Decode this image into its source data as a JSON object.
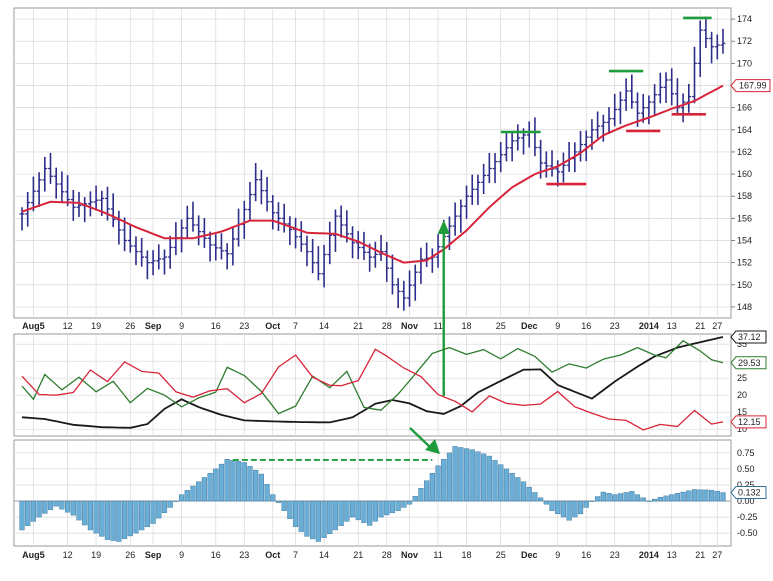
{
  "chart_data": [
    {
      "type": "ohlc",
      "panel": "price",
      "ylim": [
        147,
        175
      ],
      "yticks": [
        148,
        150,
        152,
        154,
        156,
        158,
        160,
        162,
        164,
        166,
        168,
        170,
        172,
        174
      ],
      "x_date_labels": [
        "Aug5",
        "12",
        "19",
        "26",
        "Sep",
        "9",
        "16",
        "23",
        "Oct",
        "7",
        "14",
        "21",
        "28",
        "Nov",
        "11",
        "18",
        "25",
        "Dec",
        "9",
        "16",
        "23",
        "2014",
        "13",
        "21",
        "27"
      ],
      "bold_labels": [
        "Aug5",
        "Sep",
        "Oct",
        "Nov",
        "Dec",
        "2014"
      ],
      "bar_count": 124,
      "close_anchors": [
        [
          0,
          156.4
        ],
        [
          4,
          160.5
        ],
        [
          9,
          157.0
        ],
        [
          14,
          157.8
        ],
        [
          18,
          154.0
        ],
        [
          22,
          152.0
        ],
        [
          25,
          152.5
        ],
        [
          29,
          156.0
        ],
        [
          33,
          153.6
        ],
        [
          36,
          152.8
        ],
        [
          39,
          156.8
        ],
        [
          41,
          159.5
        ],
        [
          44,
          156.5
        ],
        [
          47,
          155.0
        ],
        [
          50,
          153.0
        ],
        [
          52,
          151.0
        ],
        [
          55,
          156.2
        ],
        [
          58,
          153.8
        ],
        [
          61,
          152.5
        ],
        [
          63,
          153.0
        ],
        [
          65,
          150.0
        ],
        [
          67,
          148.8
        ],
        [
          70,
          152.3
        ],
        [
          72,
          152.5
        ],
        [
          75,
          155.3
        ],
        [
          78,
          158.0
        ],
        [
          82,
          160.5
        ],
        [
          86,
          163.0
        ],
        [
          89,
          163.8
        ],
        [
          91,
          161.0
        ],
        [
          94,
          160.2
        ],
        [
          97,
          162.0
        ],
        [
          100,
          164.0
        ],
        [
          103,
          165.0
        ],
        [
          106,
          167.5
        ],
        [
          108,
          165.5
        ],
        [
          110,
          166.5
        ],
        [
          113,
          168.5
        ],
        [
          115,
          166.0
        ],
        [
          117,
          167.0
        ],
        [
          119,
          173.0
        ],
        [
          121,
          171.5
        ],
        [
          123,
          171.8
        ]
      ],
      "moving_average": {
        "last_value": 167.99,
        "color": "#d8243a",
        "anchors": [
          [
            0,
            156.6
          ],
          [
            5,
            157.5
          ],
          [
            10,
            157.4
          ],
          [
            15,
            156.4
          ],
          [
            20,
            155.2
          ],
          [
            25,
            154.2
          ],
          [
            30,
            154.2
          ],
          [
            35,
            154.8
          ],
          [
            40,
            155.8
          ],
          [
            44,
            155.8
          ],
          [
            50,
            154.7
          ],
          [
            55,
            154.6
          ],
          [
            59,
            153.9
          ],
          [
            63,
            152.9
          ],
          [
            67,
            152.0
          ],
          [
            71,
            152.2
          ],
          [
            74,
            153.2
          ],
          [
            78,
            154.9
          ],
          [
            82,
            157.0
          ],
          [
            86,
            158.8
          ],
          [
            90,
            160.0
          ],
          [
            94,
            160.7
          ],
          [
            98,
            161.9
          ],
          [
            102,
            163.5
          ],
          [
            106,
            164.4
          ],
          [
            110,
            165.1
          ],
          [
            114,
            165.9
          ],
          [
            118,
            166.6
          ],
          [
            123,
            167.99
          ]
        ]
      },
      "bar_color": "#2d2d8a",
      "last_price_label": "167.99",
      "annotations": {
        "green_highs": [
          [
            84,
            91,
            163.8
          ],
          [
            103,
            109,
            169.3
          ],
          [
            116,
            121,
            174.1
          ]
        ],
        "red_lows": [
          [
            92,
            99,
            159.1
          ],
          [
            106,
            112,
            163.9
          ],
          [
            114,
            120,
            165.4
          ]
        ],
        "arrow_up_bar": 74
      }
    },
    {
      "type": "line",
      "panel": "indicator",
      "ylim": [
        8,
        38
      ],
      "yticks": [
        10,
        15,
        20,
        25,
        30,
        35
      ],
      "series": [
        {
          "name": "",
          "color": "#1a1a1a",
          "last_label": "37.12",
          "anchors": [
            [
              0,
              13.5
            ],
            [
              4,
              13.0
            ],
            [
              9,
              11.3
            ],
            [
              14,
              10.6
            ],
            [
              19,
              10.4
            ],
            [
              22,
              11.5
            ],
            [
              25,
              16.0
            ],
            [
              28,
              18.8
            ],
            [
              31,
              16.5
            ],
            [
              35,
              14.2
            ],
            [
              39,
              12.6
            ],
            [
              44,
              12.3
            ],
            [
              49,
              12.1
            ],
            [
              54,
              12.0
            ],
            [
              58,
              13.5
            ],
            [
              62,
              17.5
            ],
            [
              65,
              18.6
            ],
            [
              68,
              17.6
            ],
            [
              71,
              15.3
            ],
            [
              74,
              14.5
            ],
            [
              77,
              16.8
            ],
            [
              80,
              20.8
            ],
            [
              84,
              24.2
            ],
            [
              88,
              27.5
            ],
            [
              91,
              27.6
            ],
            [
              94,
              23.0
            ],
            [
              97,
              21.0
            ],
            [
              100,
              19.0
            ],
            [
              104,
              24.0
            ],
            [
              108,
              28.4
            ],
            [
              111,
              31.4
            ],
            [
              115,
              34.0
            ],
            [
              118,
              35.2
            ],
            [
              123,
              37.12
            ]
          ]
        },
        {
          "name": "",
          "color": "#2e7d2e",
          "last_label": "29.53",
          "anchors": [
            [
              0,
              22.7
            ],
            [
              2,
              18.8
            ],
            [
              4,
              26.1
            ],
            [
              7,
              21.6
            ],
            [
              10,
              25.3
            ],
            [
              13,
              21.0
            ],
            [
              16,
              24.1
            ],
            [
              19,
              17.8
            ],
            [
              22,
              22.0
            ],
            [
              25,
              20.0
            ],
            [
              28,
              16.6
            ],
            [
              31,
              19.2
            ],
            [
              34,
              20.9
            ],
            [
              36,
              28.2
            ],
            [
              39,
              25.8
            ],
            [
              42,
              21.1
            ],
            [
              45,
              14.6
            ],
            [
              48,
              16.8
            ],
            [
              51,
              25.6
            ],
            [
              54,
              22.2
            ],
            [
              57,
              27.0
            ],
            [
              60,
              16.4
            ],
            [
              63,
              15.6
            ],
            [
              66,
              20.3
            ],
            [
              69,
              26.2
            ],
            [
              72,
              32.3
            ],
            [
              75,
              34.0
            ],
            [
              78,
              32.0
            ],
            [
              81,
              33.4
            ],
            [
              84,
              30.7
            ],
            [
              87,
              33.7
            ],
            [
              90,
              31.4
            ],
            [
              93,
              26.8
            ],
            [
              96,
              29.2
            ],
            [
              99,
              28.0
            ],
            [
              102,
              30.6
            ],
            [
              105,
              31.8
            ],
            [
              108,
              34.0
            ],
            [
              111,
              31.8
            ],
            [
              113,
              31.0
            ],
            [
              116,
              36.0
            ],
            [
              119,
              33.0
            ],
            [
              121,
              30.4
            ],
            [
              123,
              29.53
            ]
          ]
        },
        {
          "name": "",
          "color": "#d8243a",
          "last_label": "12.15",
          "anchors": [
            [
              0,
              25.6
            ],
            [
              3,
              20.2
            ],
            [
              6,
              20.0
            ],
            [
              9,
              20.8
            ],
            [
              12,
              27.4
            ],
            [
              15,
              24.0
            ],
            [
              18,
              29.8
            ],
            [
              21,
              27.0
            ],
            [
              24,
              26.5
            ],
            [
              27,
              21.0
            ],
            [
              30,
              19.4
            ],
            [
              33,
              21.3
            ],
            [
              36,
              21.9
            ],
            [
              39,
              17.8
            ],
            [
              42,
              20.5
            ],
            [
              45,
              28.3
            ],
            [
              48,
              31.8
            ],
            [
              51,
              25.3
            ],
            [
              54,
              22.9
            ],
            [
              56,
              22.8
            ],
            [
              59,
              24.3
            ],
            [
              62,
              33.5
            ],
            [
              64,
              31.5
            ],
            [
              67,
              28.0
            ],
            [
              70,
              25.5
            ],
            [
              73,
              20.2
            ],
            [
              76,
              18.2
            ],
            [
              79,
              15.1
            ],
            [
              82,
              19.8
            ],
            [
              85,
              17.6
            ],
            [
              88,
              17.0
            ],
            [
              91,
              17.4
            ],
            [
              94,
              21.1
            ],
            [
              97,
              16.6
            ],
            [
              100,
              14.7
            ],
            [
              103,
              13.0
            ],
            [
              106,
              12.6
            ],
            [
              109,
              9.8
            ],
            [
              112,
              11.4
            ],
            [
              115,
              10.8
            ],
            [
              118,
              15.5
            ],
            [
              121,
              11.5
            ],
            [
              123,
              12.15
            ]
          ]
        }
      ]
    },
    {
      "type": "histogram",
      "panel": "oscillator",
      "ylim": [
        -0.7,
        0.95
      ],
      "yticks": [
        -0.5,
        -0.25,
        0.0,
        0.25,
        0.5,
        0.75
      ],
      "last_value_label": "0.132",
      "bar_color": "#6aaed6",
      "x_date_labels": [
        "Aug5",
        "12",
        "19",
        "26",
        "Sep",
        "9",
        "16",
        "23",
        "Oct",
        "7",
        "14",
        "21",
        "28",
        "Nov",
        "11",
        "18",
        "25",
        "Dec",
        "9",
        "16",
        "23",
        "2014",
        "13",
        "21",
        "27"
      ],
      "bold_labels": [
        "Aug5",
        "Sep",
        "Oct",
        "Nov",
        "Dec",
        "2014"
      ],
      "anchors": [
        [
          0,
          -0.45
        ],
        [
          3,
          -0.25
        ],
        [
          6,
          -0.08
        ],
        [
          9,
          -0.22
        ],
        [
          12,
          -0.45
        ],
        [
          15,
          -0.6
        ],
        [
          17,
          -0.63
        ],
        [
          20,
          -0.5
        ],
        [
          23,
          -0.35
        ],
        [
          26,
          -0.1
        ],
        [
          28,
          0.1
        ],
        [
          31,
          0.3
        ],
        [
          34,
          0.5
        ],
        [
          36,
          0.65
        ],
        [
          39,
          0.6
        ],
        [
          42,
          0.42
        ],
        [
          44,
          0.1
        ],
        [
          46,
          -0.15
        ],
        [
          48,
          -0.4
        ],
        [
          50,
          -0.55
        ],
        [
          52,
          -0.63
        ],
        [
          55,
          -0.45
        ],
        [
          58,
          -0.25
        ],
        [
          61,
          -0.38
        ],
        [
          63,
          -0.25
        ],
        [
          66,
          -0.15
        ],
        [
          68,
          -0.05
        ],
        [
          70,
          0.2
        ],
        [
          73,
          0.55
        ],
        [
          76,
          0.85
        ],
        [
          79,
          0.8
        ],
        [
          82,
          0.7
        ],
        [
          85,
          0.5
        ],
        [
          88,
          0.3
        ],
        [
          91,
          0.05
        ],
        [
          93,
          -0.15
        ],
        [
          96,
          -0.3
        ],
        [
          98,
          -0.2
        ],
        [
          100,
          0.0
        ],
        [
          102,
          0.14
        ],
        [
          104,
          0.1
        ],
        [
          107,
          0.15
        ],
        [
          110,
          0.0
        ],
        [
          112,
          0.06
        ],
        [
          115,
          0.12
        ],
        [
          118,
          0.18
        ],
        [
          121,
          0.17
        ],
        [
          123,
          0.132
        ]
      ],
      "dashed_line_level": 0.64,
      "dashed_line_span": [
        37,
        72
      ],
      "arrow_target_bar": 73
    }
  ]
}
